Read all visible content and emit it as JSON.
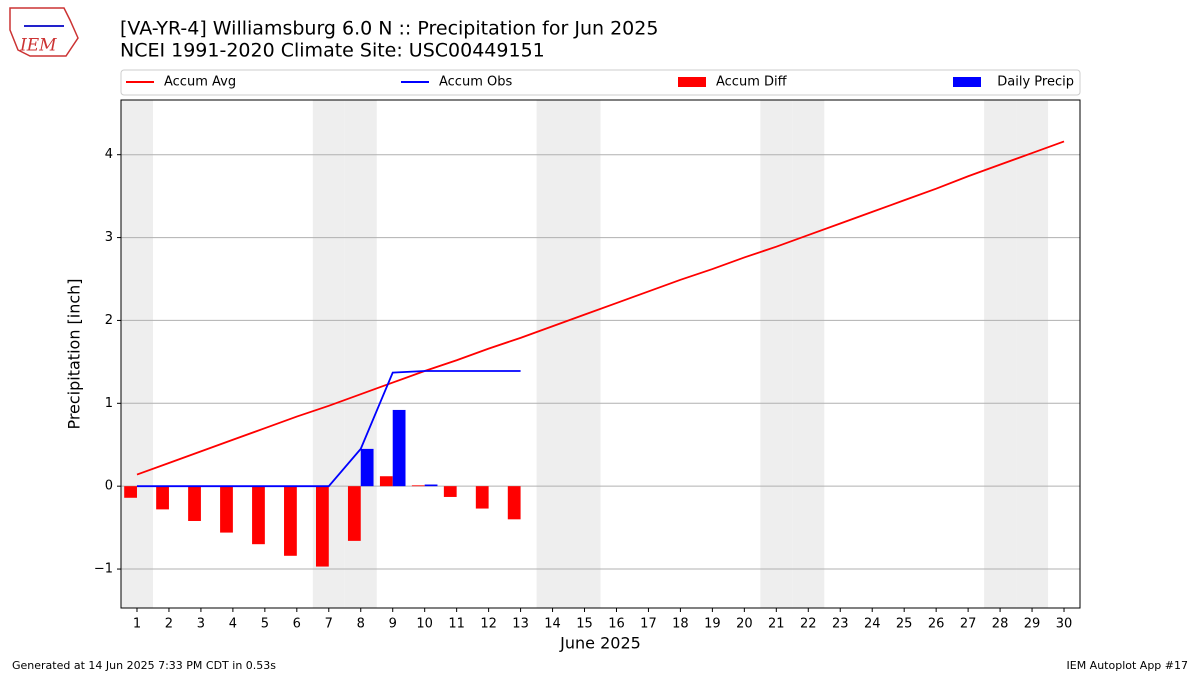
{
  "logo_text": "IEM",
  "footer_left": "Generated at 14 Jun 2025 7:33 PM CDT in 0.53s",
  "footer_right": "IEM Autoplot App #17",
  "chart_data": {
    "type": "bar_line",
    "title": "[VA-YR-4] Williamsburg 6.0 N :: Precipitation for Jun 2025",
    "subtitle": "NCEI 1991-2020 Climate Site: USC00449151",
    "x_label": "June 2025",
    "y_label": "Precipitation [inch]",
    "x": [
      1,
      2,
      3,
      4,
      5,
      6,
      7,
      8,
      9,
      10,
      11,
      12,
      13,
      14,
      15,
      16,
      17,
      18,
      19,
      20,
      21,
      22,
      23,
      24,
      25,
      26,
      27,
      28,
      29,
      30
    ],
    "weekend_days": [
      1,
      7,
      8,
      14,
      15,
      21,
      22,
      28,
      29
    ],
    "series": [
      {
        "name": "Accum Avg",
        "kind": "line",
        "color": "#ff0000",
        "values": [
          0.14,
          0.28,
          0.42,
          0.56,
          0.7,
          0.84,
          0.97,
          1.11,
          1.25,
          1.39,
          1.52,
          1.66,
          1.79,
          1.93,
          2.07,
          2.21,
          2.35,
          2.49,
          2.62,
          2.76,
          2.89,
          3.03,
          3.17,
          3.31,
          3.45,
          3.59,
          3.74,
          3.88,
          4.02,
          4.16
        ]
      },
      {
        "name": "Accum Obs",
        "kind": "line",
        "color": "#0000ff",
        "values": [
          0,
          0,
          0,
          0,
          0,
          0,
          0,
          0.45,
          1.37,
          1.39,
          1.39,
          1.39,
          1.39,
          null,
          null,
          null,
          null,
          null,
          null,
          null,
          null,
          null,
          null,
          null,
          null,
          null,
          null,
          null,
          null,
          null
        ]
      },
      {
        "name": "Accum Diff",
        "kind": "bar",
        "offset": -0.2,
        "color": "#ff0000",
        "values": [
          -0.14,
          -0.28,
          -0.42,
          -0.56,
          -0.7,
          -0.84,
          -0.97,
          -0.66,
          0.12,
          0.01,
          -0.13,
          -0.27,
          -0.4,
          null,
          null,
          null,
          null,
          null,
          null,
          null,
          null,
          null,
          null,
          null,
          null,
          null,
          null,
          null,
          null,
          null
        ]
      },
      {
        "name": "Daily Precip",
        "kind": "bar",
        "offset": 0.2,
        "color": "#0000ff",
        "values": [
          0,
          0,
          0,
          0,
          0,
          0,
          0,
          0.45,
          0.92,
          0.02,
          0,
          0,
          0,
          null,
          null,
          null,
          null,
          null,
          null,
          null,
          null,
          null,
          null,
          null,
          null,
          null,
          null,
          null,
          null,
          null
        ]
      }
    ],
    "xlim": [
      0.5,
      30.5
    ],
    "xticks": [
      1,
      2,
      3,
      4,
      5,
      6,
      7,
      8,
      9,
      10,
      11,
      12,
      13,
      14,
      15,
      16,
      17,
      18,
      19,
      20,
      21,
      22,
      23,
      24,
      25,
      26,
      27,
      28,
      29,
      30
    ],
    "ylim": [
      -1.47,
      4.66
    ],
    "yticks": [
      {
        "value": -1,
        "label": "−1"
      },
      0,
      1,
      2,
      3,
      4
    ],
    "grid": true
  }
}
